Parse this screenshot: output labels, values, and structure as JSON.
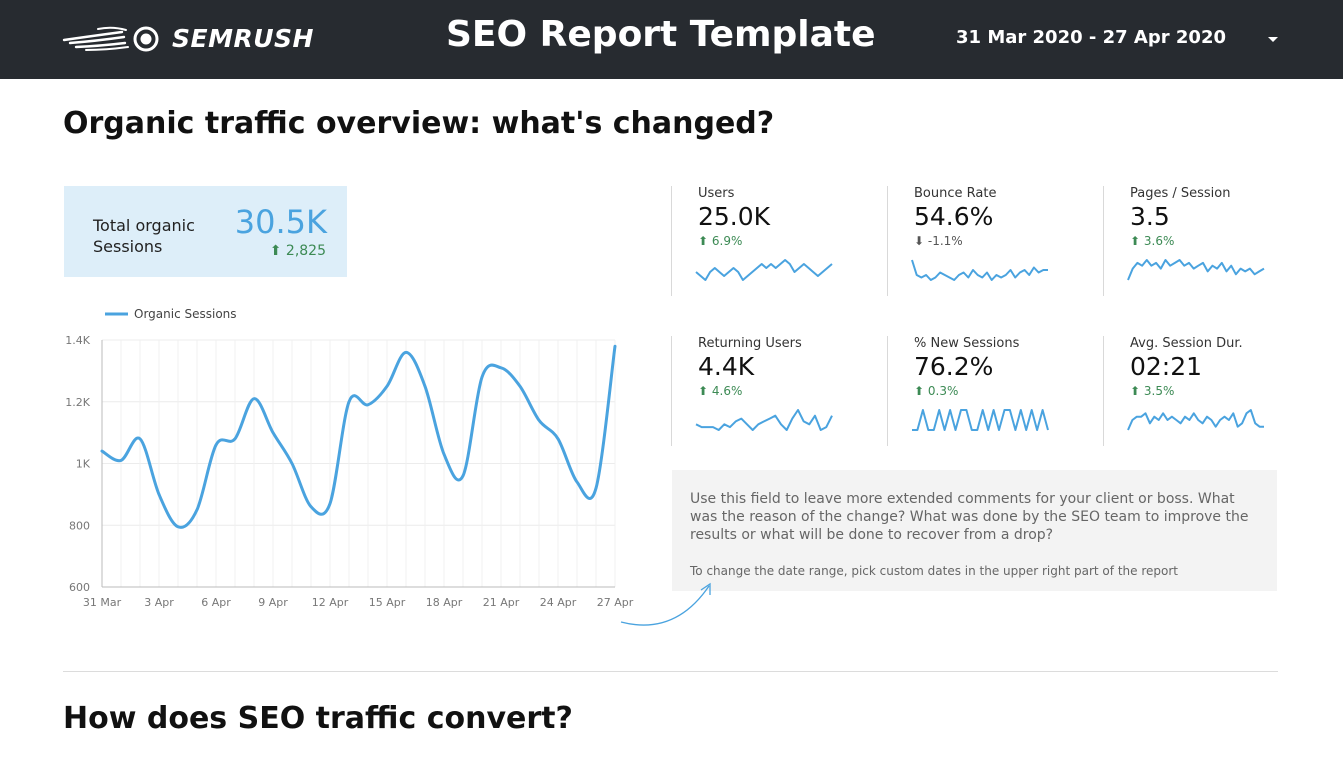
{
  "header": {
    "brand": "SEMRUSH",
    "title": "SEO Report Template",
    "date_range": "31 Mar 2020 - 27 Apr 2020"
  },
  "sections": {
    "overview_title": "Organic traffic overview: what's changed?",
    "convert_title": "How does SEO traffic convert?"
  },
  "total": {
    "label": "Total organic Sessions",
    "value": "30.5K",
    "delta": "2,825",
    "delta_direction": "up"
  },
  "scorecards": [
    {
      "label": "Users",
      "value": "25.0K",
      "delta": "6.9%",
      "direction": "up",
      "spark": [
        5,
        4,
        3,
        5,
        6,
        5,
        4,
        5,
        6,
        5,
        3,
        4,
        5,
        6,
        7,
        6,
        7,
        6,
        7,
        8,
        7,
        5,
        6,
        7,
        6,
        5,
        4,
        5,
        6,
        7
      ]
    },
    {
      "label": "Bounce Rate",
      "value": "54.6%",
      "delta": "-1.1%",
      "direction": "down",
      "spark": [
        10,
        4,
        3,
        4,
        2,
        3,
        5,
        4,
        3,
        2,
        4,
        5,
        3,
        6,
        4,
        3,
        5,
        2,
        4,
        3,
        4,
        6,
        3,
        5,
        6,
        4,
        7,
        5,
        6,
        6
      ]
    },
    {
      "label": "Pages / Session",
      "value": "3.5",
      "delta": "3.6%",
      "direction": "up",
      "spark": [
        2,
        6,
        8,
        7,
        9,
        7,
        8,
        6,
        9,
        7,
        8,
        9,
        7,
        8,
        6,
        7,
        8,
        5,
        7,
        6,
        8,
        5,
        7,
        4,
        6,
        5,
        6,
        4,
        5,
        6
      ]
    },
    {
      "label": "Returning Users",
      "value": "4.4K",
      "delta": "4.6%",
      "direction": "up",
      "spark": [
        6,
        5,
        5,
        5,
        4,
        6,
        5,
        7,
        8,
        6,
        4,
        6,
        7,
        8,
        9,
        6,
        4,
        8,
        11,
        7,
        6,
        9,
        4,
        5,
        9
      ]
    },
    {
      "label": "% New Sessions",
      "value": "76.2%",
      "delta": "0.3%",
      "direction": "up",
      "spark": [
        3,
        3,
        4,
        3,
        3,
        4,
        3,
        4,
        3,
        4,
        4,
        3,
        3,
        4,
        3,
        4,
        3,
        4,
        4,
        3,
        4,
        3,
        4,
        3,
        4,
        3
      ]
    },
    {
      "label": "Avg. Session Dur.",
      "value": "02:21",
      "delta": "3.5%",
      "direction": "up",
      "spark": [
        3,
        6,
        7,
        7,
        8,
        5,
        7,
        6,
        8,
        6,
        7,
        6,
        5,
        7,
        6,
        8,
        6,
        5,
        7,
        6,
        4,
        6,
        7,
        6,
        8,
        4,
        5,
        8,
        9,
        5,
        4,
        4
      ]
    }
  ],
  "comment": {
    "text": "Use this field to leave more extended comments for your client or boss. What was the reason of the change? What was done by the SEO team to improve the results or what will be done to recover from a drop?",
    "note": "To change the date range, pick custom dates in the upper right part of the report"
  },
  "colors": {
    "header_bg": "#272b30",
    "accent": "#4aa3df",
    "positive": "#3c8a54",
    "total_box_bg": "#ddeef9",
    "comment_bg": "#f3f3f3"
  },
  "chart_data": {
    "type": "line",
    "series": [
      {
        "name": "Organic Sessions",
        "values": [
          1040,
          1010,
          1080,
          900,
          795,
          850,
          1060,
          1080,
          1210,
          1100,
          1000,
          860,
          870,
          1200,
          1190,
          1250,
          1360,
          1250,
          1030,
          960,
          1280,
          1310,
          1250,
          1140,
          1080,
          940,
          920,
          1380
        ]
      }
    ],
    "x": [
      "31 Mar",
      "1 Apr",
      "2 Apr",
      "3 Apr",
      "4 Apr",
      "5 Apr",
      "6 Apr",
      "7 Apr",
      "8 Apr",
      "9 Apr",
      "10 Apr",
      "11 Apr",
      "12 Apr",
      "13 Apr",
      "14 Apr",
      "15 Apr",
      "16 Apr",
      "17 Apr",
      "18 Apr",
      "19 Apr",
      "20 Apr",
      "21 Apr",
      "22 Apr",
      "23 Apr",
      "24 Apr",
      "25 Apr",
      "26 Apr",
      "27 Apr"
    ],
    "x_tick_labels": [
      "31 Mar",
      "3 Apr",
      "6 Apr",
      "9 Apr",
      "12 Apr",
      "15 Apr",
      "18 Apr",
      "21 Apr",
      "24 Apr",
      "27 Apr"
    ],
    "y_tick_labels": [
      "600",
      "800",
      "1K",
      "1.2K",
      "1.4K"
    ],
    "y_ticks": [
      600,
      800,
      1000,
      1200,
      1400
    ],
    "ylim": [
      600,
      1400
    ],
    "legend": "top-left",
    "grid": true
  }
}
